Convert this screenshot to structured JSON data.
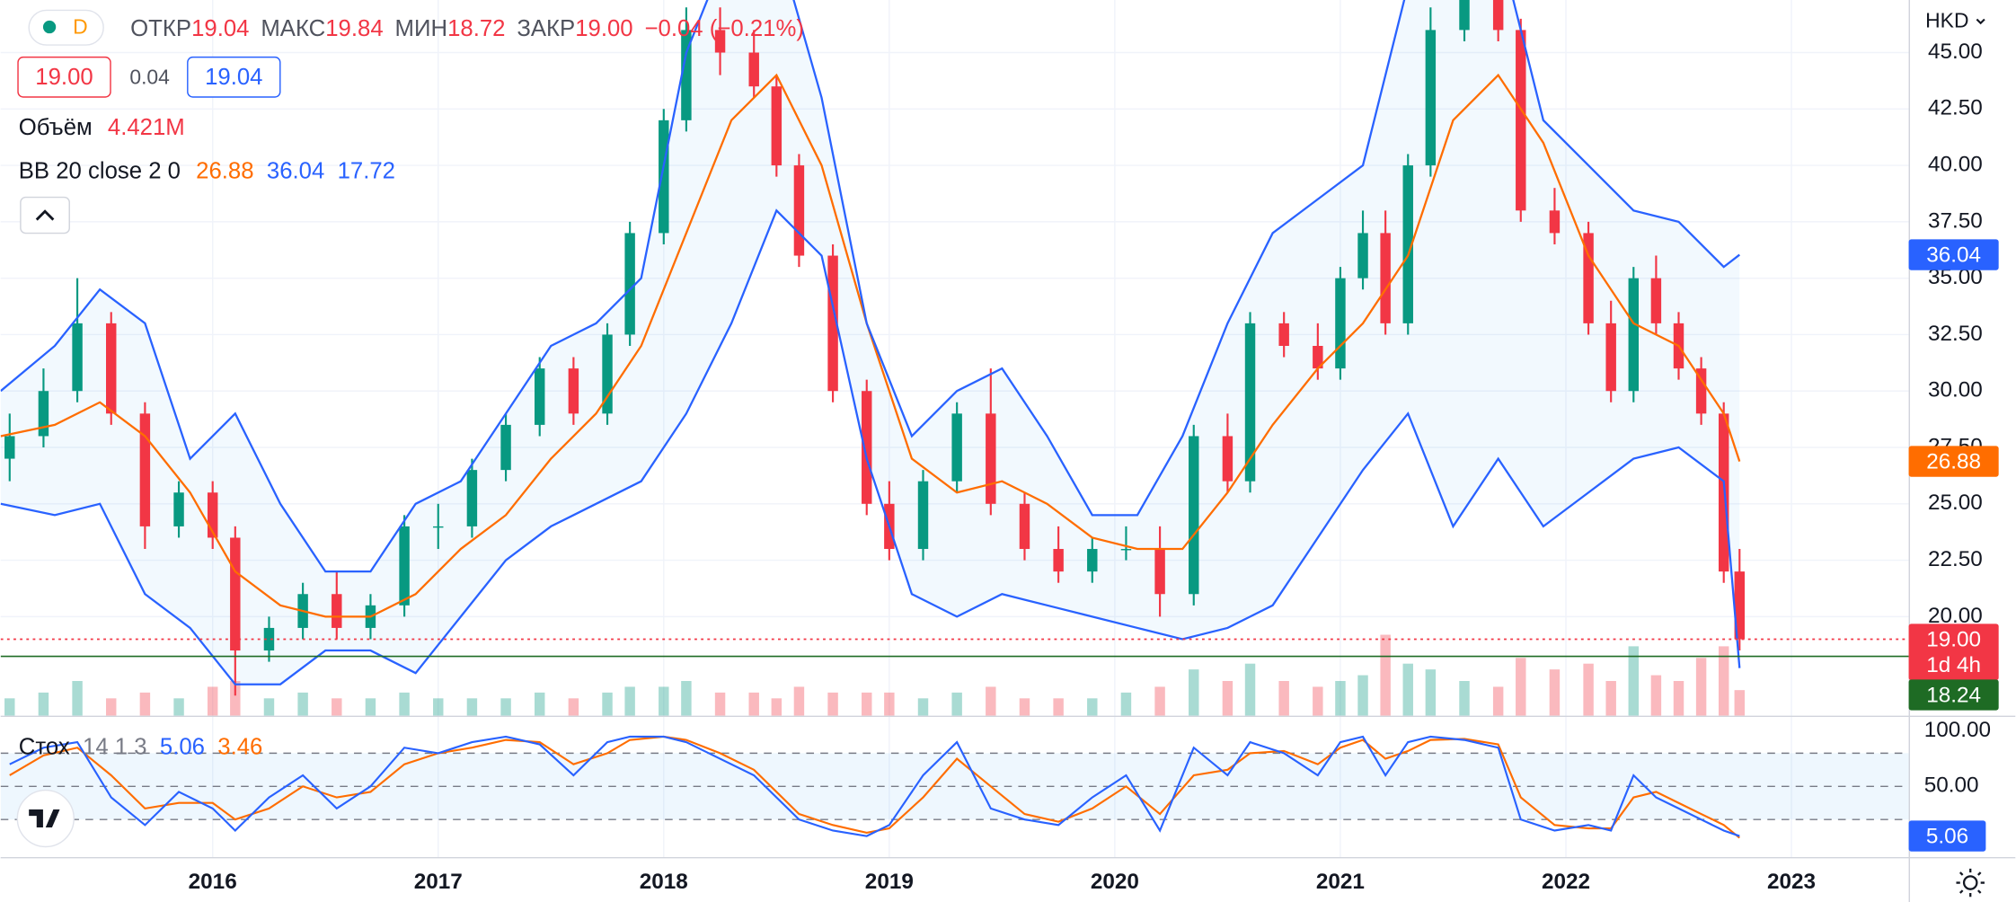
{
  "header": {
    "symbol_interval": "D",
    "open_label": "ОТКР",
    "open": "19.04",
    "high_label": "МАКС",
    "high": "19.84",
    "low_label": "МИН",
    "low": "18.72",
    "close_label": "ЗАКР",
    "close": "19.00",
    "change": "−0.04 (−0.21%)",
    "bid": "19.00",
    "spread": "0.04",
    "ask": "19.04",
    "currency": "HKD"
  },
  "chart_data": [
    {
      "type": "candlestick",
      "x": [
        2015.1,
        2015.25,
        2015.4,
        2015.55,
        2015.7,
        2015.85,
        2016.0,
        2016.1,
        2016.25,
        2016.4,
        2016.55,
        2016.7,
        2016.85,
        2017.0,
        2017.15,
        2017.3,
        2017.45,
        2017.6,
        2017.75,
        2017.85,
        2018.0,
        2018.1,
        2018.25,
        2018.4,
        2018.5,
        2018.6,
        2018.75,
        2018.9,
        2019.0,
        2019.15,
        2019.3,
        2019.45,
        2019.6,
        2019.75,
        2019.9,
        2020.05,
        2020.2,
        2020.35,
        2020.5,
        2020.6,
        2020.75,
        2020.9,
        2021.0,
        2021.1,
        2021.2,
        2021.3,
        2021.4,
        2021.55,
        2021.7,
        2021.8,
        2021.95,
        2022.1,
        2022.2,
        2022.3,
        2022.4,
        2022.5,
        2022.6,
        2022.7,
        2022.77
      ],
      "open": [
        27,
        28,
        30,
        33,
        29,
        24,
        25.5,
        23.5,
        18.5,
        19.5,
        21,
        19.5,
        20.5,
        24,
        24,
        26.5,
        28.5,
        31,
        29,
        32.5,
        37,
        42,
        46,
        45,
        43.5,
        40,
        36,
        30,
        25,
        23,
        26,
        29,
        25,
        23,
        22,
        23,
        23,
        21,
        28,
        26,
        33,
        32,
        31,
        35,
        37,
        33,
        40,
        46,
        48,
        46,
        38,
        37,
        33,
        30,
        35,
        33,
        31,
        29,
        22
      ],
      "high": [
        29,
        31,
        35,
        33.5,
        29.5,
        26,
        26,
        24,
        20,
        21.5,
        22,
        21,
        24.5,
        25,
        27,
        29,
        31.5,
        31.5,
        33,
        37.5,
        42.5,
        47,
        47,
        46,
        44,
        40.5,
        36.5,
        30.5,
        26,
        26.5,
        29.5,
        31,
        25.5,
        24,
        23.5,
        24,
        24,
        28.5,
        29,
        33.5,
        33.5,
        33,
        35.5,
        38,
        38,
        40.5,
        47,
        49,
        49,
        46.5,
        39,
        37.5,
        34,
        35.5,
        36,
        33.5,
        31.5,
        29.5,
        23
      ],
      "low": [
        26,
        27.5,
        29.5,
        28.5,
        23,
        23.5,
        23,
        16.5,
        18,
        19,
        19,
        19,
        20,
        23,
        23.5,
        26,
        28,
        28.5,
        28.5,
        32,
        36.5,
        41.5,
        44,
        43,
        39.5,
        35.5,
        29.5,
        24.5,
        22.5,
        22.5,
        25.5,
        24.5,
        22.5,
        21.5,
        21.5,
        22.5,
        20,
        20.5,
        25.5,
        25.5,
        31.5,
        30.5,
        30.5,
        34.5,
        32.5,
        32.5,
        39.5,
        45.5,
        45.5,
        37.5,
        36.5,
        32.5,
        29.5,
        29.5,
        32.5,
        30.5,
        28.5,
        21.5,
        18.5
      ],
      "close": [
        28,
        30,
        33,
        29,
        24,
        25.5,
        23.5,
        18.5,
        19.5,
        21,
        19.5,
        20.5,
        24,
        24,
        26.5,
        28.5,
        31,
        29,
        32.5,
        37,
        42,
        46,
        45,
        43.5,
        40,
        36,
        30,
        25,
        23,
        26,
        29,
        25,
        23,
        22,
        23,
        23,
        21,
        28,
        26,
        33,
        32,
        31,
        35,
        37,
        33,
        40,
        46,
        48,
        46,
        38,
        37,
        33,
        30,
        35,
        33,
        31,
        29,
        22,
        19
      ],
      "up_color": "#089981",
      "down_color": "#f23645",
      "xlim": [
        2015.06,
        2023.52
      ],
      "xticks": [
        2016,
        2017,
        2018,
        2019,
        2020,
        2021,
        2022,
        2023
      ],
      "ylim": [
        15.61,
        47.33
      ],
      "yticks": [
        {
          "value": 20,
          "label": "20.00"
        },
        {
          "value": 22.5,
          "label": "22.50"
        },
        {
          "value": 25,
          "label": "25.00"
        },
        {
          "value": 27.5,
          "label": "27.50"
        },
        {
          "value": 30,
          "label": "30.00"
        },
        {
          "value": 32.5,
          "label": "32.50"
        },
        {
          "value": 35,
          "label": "35.00"
        },
        {
          "value": 37.5,
          "label": "37.50"
        },
        {
          "value": 40,
          "label": "40.00"
        },
        {
          "value": 42.5,
          "label": "42.50"
        },
        {
          "value": 45,
          "label": "45.00"
        }
      ],
      "grid": true,
      "volume": {
        "name": "Объём",
        "value_label": "4.421M",
        "ylim": [
          0,
          40
        ],
        "values": [
          3,
          4,
          6,
          3,
          4,
          3,
          5,
          6,
          3,
          4,
          3,
          3,
          4,
          3,
          3,
          3,
          4,
          3,
          4,
          5,
          5,
          6,
          4,
          4,
          3,
          5,
          4,
          4,
          4,
          3,
          4,
          5,
          3,
          3,
          3,
          4,
          5,
          8,
          6,
          9,
          6,
          5,
          6,
          7,
          14,
          9,
          8,
          6,
          5,
          10,
          8,
          9,
          6,
          12,
          7,
          6,
          10,
          12,
          4.421
        ]
      },
      "bollinger": {
        "name": "BB 20 close 2 0",
        "fill": "#2196f3",
        "x": [
          2015.06,
          2015.3,
          2015.5,
          2015.7,
          2015.9,
          2016.1,
          2016.3,
          2016.5,
          2016.7,
          2016.9,
          2017.1,
          2017.3,
          2017.5,
          2017.7,
          2017.9,
          2018.1,
          2018.3,
          2018.5,
          2018.7,
          2018.9,
          2019.1,
          2019.3,
          2019.5,
          2019.7,
          2019.9,
          2020.1,
          2020.3,
          2020.5,
          2020.7,
          2020.9,
          2021.1,
          2021.3,
          2021.5,
          2021.7,
          2021.9,
          2022.1,
          2022.3,
          2022.5,
          2022.7,
          2022.77
        ],
        "series": [
          {
            "color": "#ff6d00",
            "values": [
              28,
              28.5,
              29.5,
              28,
              25.5,
              22,
              20.5,
              20,
              20,
              21,
              23,
              24.5,
              27,
              29,
              32,
              37,
              42,
              44,
              40,
              33,
              27,
              25.5,
              26,
              25,
              23.5,
              23,
              23,
              25.5,
              28.5,
              31,
              33,
              36,
              42,
              44,
              41,
              36,
              33,
              32,
              29,
              26.88
            ]
          },
          {
            "color": "#2962ff",
            "values": [
              30,
              32,
              34.5,
              33,
              27,
              29,
              25,
              22,
              22,
              25,
              26,
              29,
              32,
              33,
              35,
              45,
              50,
              50,
              43,
              33,
              28,
              30,
              31,
              28,
              24.5,
              24.5,
              28,
              33,
              37,
              38.5,
              40,
              48,
              52,
              50,
              42,
              40,
              38,
              37.5,
              35.5,
              36.04
            ]
          },
          {
            "color": "#2962ff",
            "values": [
              25,
              24.5,
              25,
              21,
              19.5,
              17,
              17,
              18.5,
              18.5,
              17.5,
              20,
              22.5,
              24,
              25,
              26,
              29,
              33,
              38,
              36,
              27,
              21,
              20,
              21,
              20.5,
              20,
              19.5,
              19,
              19.5,
              20.5,
              23.5,
              26.5,
              29,
              24,
              27,
              24,
              25.5,
              27,
              27.5,
              26,
              17.72
            ]
          }
        ]
      },
      "price_lines": [
        {
          "value": 19,
          "label": "19.00",
          "sublabel": "1d 4h",
          "color": "#f23645",
          "style": "dotted"
        },
        {
          "value": 18.24,
          "color": "#1e6b24",
          "style": "solid"
        }
      ]
    },
    {
      "type": "line",
      "name": "Стох",
      "params": "14 1 3",
      "ylim": [
        -13.95,
        113.95
      ],
      "yticks": [
        {
          "value": 100,
          "label": "100.00"
        },
        {
          "value": 50,
          "label": "50.00"
        }
      ],
      "hlines": [
        80,
        50,
        20
      ],
      "band": [
        20,
        80
      ],
      "band_color": "#2196f3",
      "series": [
        {
          "color": "#2962ff",
          "values": [
            70,
            85,
            90,
            40,
            15,
            45,
            30,
            10,
            40,
            60,
            30,
            50,
            85,
            80,
            90,
            95,
            88,
            60,
            90,
            95,
            95,
            90,
            75,
            60,
            40,
            20,
            10,
            5,
            15,
            60,
            90,
            30,
            20,
            15,
            40,
            60,
            10,
            85,
            60,
            90,
            80,
            60,
            90,
            95,
            60,
            90,
            95,
            92,
            85,
            20,
            10,
            15,
            10,
            60,
            40,
            30,
            20,
            10,
            5.06
          ]
        },
        {
          "color": "#ff6d00",
          "values": [
            60,
            78,
            85,
            60,
            30,
            35,
            35,
            20,
            30,
            50,
            40,
            45,
            70,
            80,
            85,
            92,
            90,
            70,
            80,
            92,
            95,
            92,
            80,
            65,
            45,
            25,
            15,
            8,
            12,
            40,
            75,
            50,
            25,
            18,
            30,
            50,
            25,
            60,
            65,
            80,
            82,
            70,
            85,
            92,
            75,
            82,
            92,
            93,
            88,
            40,
            15,
            12,
            12,
            40,
            45,
            35,
            25,
            15,
            3.46
          ]
        }
      ]
    }
  ]
}
